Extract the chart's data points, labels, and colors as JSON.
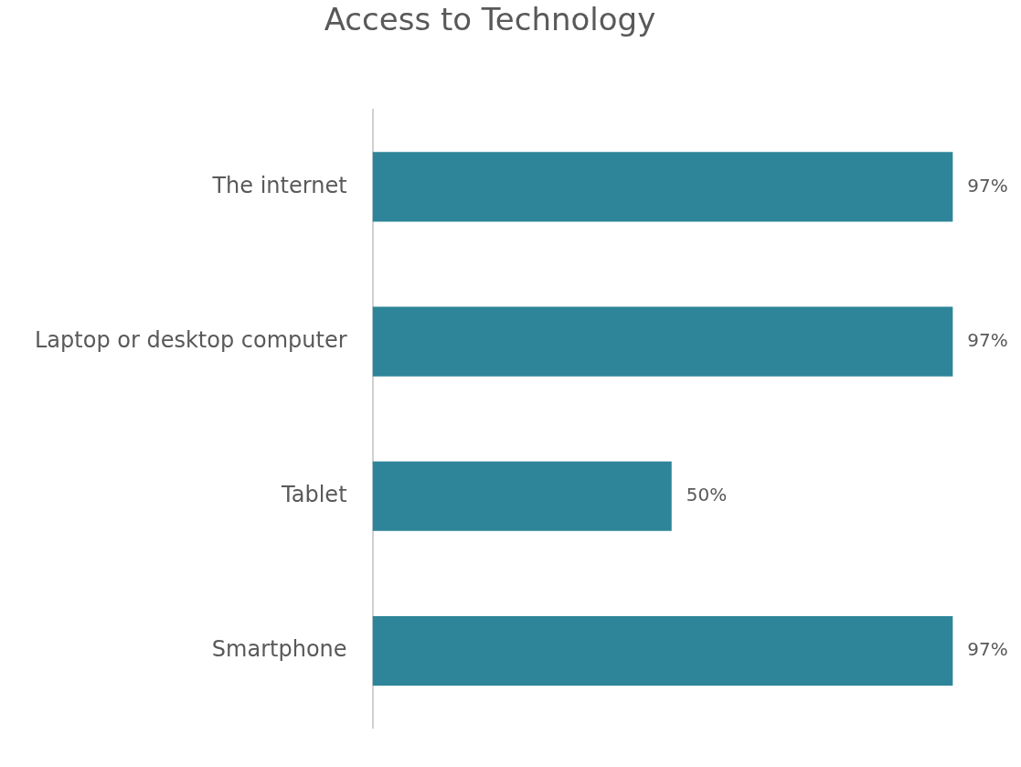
{
  "chart_data": {
    "type": "bar",
    "orientation": "horizontal",
    "title": "Access to Technology",
    "categories": [
      "The internet",
      "Laptop or desktop computer",
      "Tablet",
      "Smartphone"
    ],
    "values": [
      97,
      97,
      50,
      97
    ],
    "value_labels": [
      "97%",
      "97%",
      "50%",
      "97%"
    ],
    "color": "#2e8599",
    "tick_labels": "y",
    "grid": false,
    "legend": false
  }
}
